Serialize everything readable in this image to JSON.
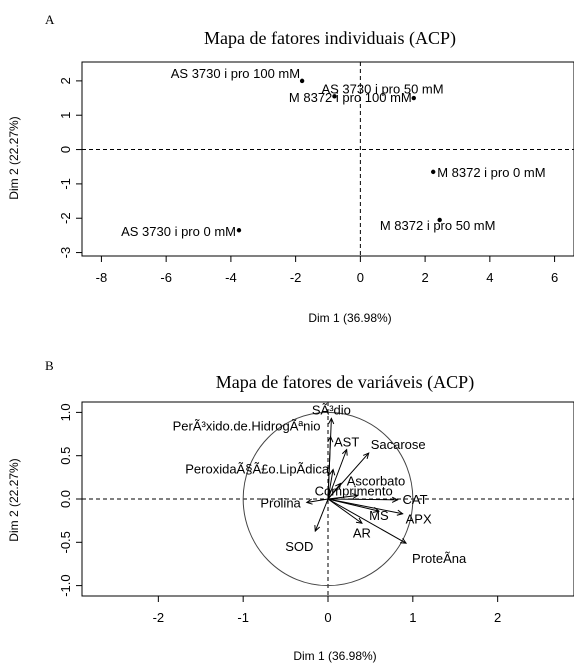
{
  "chart_data": [
    {
      "panel_label": "A",
      "type": "scatter",
      "title": "Mapa de fatores individuais (ACP)",
      "xlabel": "Dim 1 (36.98%)",
      "ylabel": "Dim 2 (22.27%)",
      "xlim": [
        -8.6,
        6.6
      ],
      "ylim": [
        -3.1,
        2.55
      ],
      "xticks": [
        -8,
        -6,
        -4,
        -2,
        0,
        2,
        4,
        6
      ],
      "yticks": [
        -3,
        -2,
        -1,
        0,
        1,
        2
      ],
      "points": [
        {
          "label": "AS 3730 i pro 100 mM",
          "x": -1.8,
          "y": 2.0
        },
        {
          "label": "AS 3730 i pro 50 mM",
          "x": -0.8,
          "y": 1.55
        },
        {
          "label": "M 8372 i pro 100 mM",
          "x": 1.65,
          "y": 1.5
        },
        {
          "label": "M 8372 i pro 0 mM",
          "x": 2.25,
          "y": -0.65
        },
        {
          "label": "M 8372 i pro 50 mM",
          "x": 2.45,
          "y": -2.05
        },
        {
          "label": "AS 3730 i pro 0 mM",
          "x": -3.75,
          "y": -2.35
        }
      ]
    },
    {
      "panel_label": "B",
      "type": "scatter",
      "title": "Mapa de fatores de variáveis (ACP)",
      "xlabel": "Dim 1 (36.98%)",
      "ylabel": "Dim 2 (22.27%)",
      "xlim": [
        -2.9,
        2.9
      ],
      "ylim": [
        -1.12,
        1.12
      ],
      "xticks": [
        -2,
        -1,
        0,
        1,
        2
      ],
      "yticks": [
        -1.0,
        -0.5,
        0.0,
        0.5,
        1.0
      ],
      "yticklabels": [
        "-1.0",
        "-0.5",
        "0.0",
        "0.5",
        "1.0"
      ],
      "variables": [
        {
          "label": "SÃ³dio",
          "x": 0.04,
          "y": 0.93
        },
        {
          "label": "PerÃ³xido.de.HidrogÃªnio",
          "x": 0.03,
          "y": 0.72
        },
        {
          "label": "AST",
          "x": 0.22,
          "y": 0.57
        },
        {
          "label": "Sacarose",
          "x": 0.48,
          "y": 0.53
        },
        {
          "label": "PeroxidaÃ§Ã£o.LipÃ­dica",
          "x": 0.06,
          "y": 0.34
        },
        {
          "label": "Ascorbato",
          "x": 0.15,
          "y": 0.18
        },
        {
          "label": "Comprimento",
          "x": 0.35,
          "y": 0.04
        },
        {
          "label": "CAT",
          "x": 0.82,
          "y": -0.01
        },
        {
          "label": "Prolina",
          "x": -0.25,
          "y": -0.04
        },
        {
          "label": "MS",
          "x": 0.6,
          "y": -0.14
        },
        {
          "label": "APX",
          "x": 0.88,
          "y": -0.17
        },
        {
          "label": "AR",
          "x": 0.4,
          "y": -0.28
        },
        {
          "label": "SOD",
          "x": -0.15,
          "y": -0.37
        },
        {
          "label": "ProteÃ­na",
          "x": 0.92,
          "y": -0.51
        }
      ]
    }
  ]
}
